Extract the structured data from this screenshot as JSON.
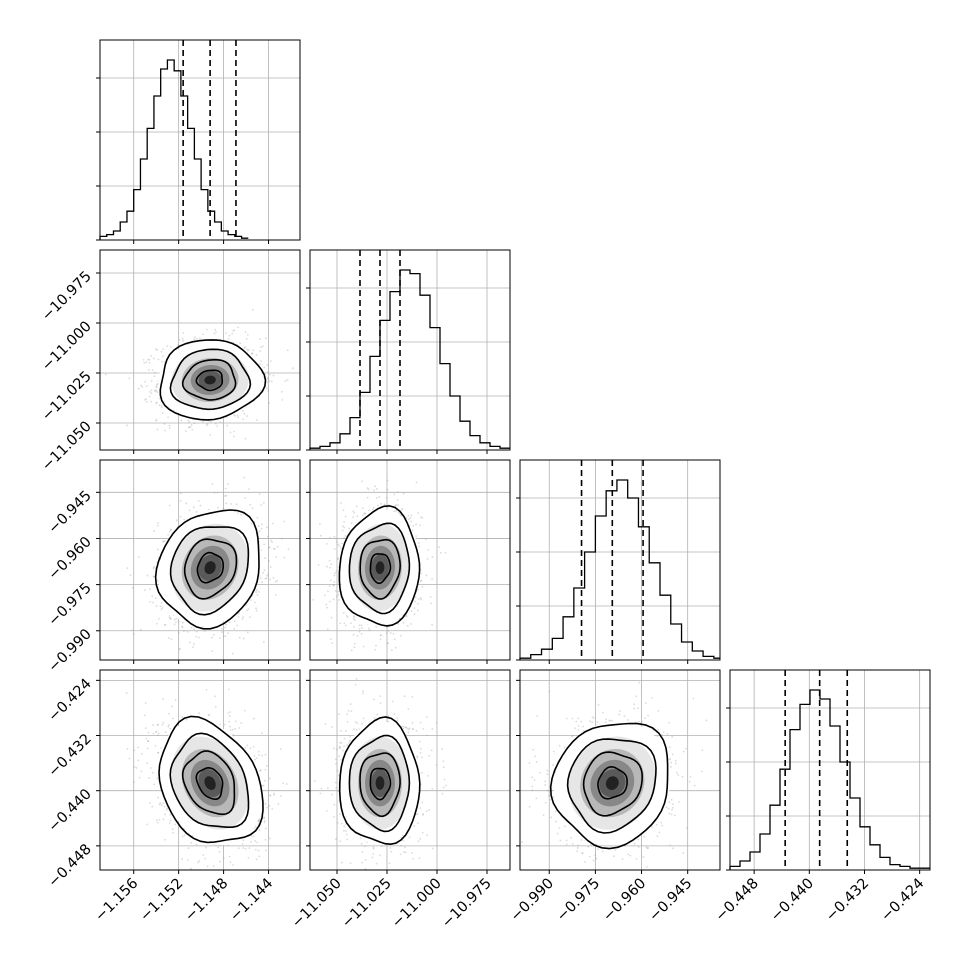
{
  "chart_data": {
    "type": "corner",
    "grid": true,
    "parameters": [
      {
        "ticks": [
          -1.156,
          -1.152,
          -1.148,
          -1.144
        ],
        "tick_labels": [
          "−1.156",
          "−1.152",
          "−1.148",
          "−1.144"
        ],
        "range": [
          -1.159,
          -1.1412
        ],
        "quantiles": [
          -1.1516,
          -1.1492,
          -1.1469
        ],
        "mean": -1.1492,
        "sd": 0.0023,
        "histogram": {
          "bin_edges_start": -1.159,
          "bin_width": 0.0006,
          "counts": [
            2,
            3,
            5,
            10,
            16,
            28,
            45,
            62,
            80,
            95,
            100,
            94,
            80,
            62,
            45,
            28,
            16,
            10,
            5,
            3,
            2,
            1
          ]
        }
      },
      {
        "ticks": [
          -11.05,
          -11.025,
          -11.0,
          -10.975
        ],
        "tick_labels": [
          "−11.050",
          "−11.025",
          "−11.000",
          "−10.975"
        ],
        "range": [
          -11.0635,
          -10.9635
        ],
        "quantiles": [
          -11.0385,
          -11.0285,
          -11.0185
        ],
        "mean": -11.0285,
        "sd": 0.01,
        "histogram": {
          "bin_edges_start": -11.0635,
          "bin_width": 0.005,
          "counts": [
            1,
            2,
            4,
            9,
            18,
            32,
            52,
            72,
            88,
            100,
            98,
            86,
            68,
            48,
            30,
            16,
            8,
            4,
            2,
            1
          ]
        }
      },
      {
        "ticks": [
          -0.99,
          -0.975,
          -0.96,
          -0.945
        ],
        "tick_labels": [
          "−0.990",
          "−0.975",
          "−0.960",
          "−0.945"
        ],
        "range": [
          -0.9995,
          -0.9345
        ],
        "quantiles": [
          -0.9795,
          -0.9695,
          -0.9595
        ],
        "mean": -0.9695,
        "sd": 0.0095,
        "histogram": {
          "bin_edges_start": -0.9995,
          "bin_width": 0.0035,
          "counts": [
            1,
            3,
            6,
            12,
            24,
            40,
            60,
            80,
            94,
            100,
            90,
            74,
            54,
            36,
            20,
            10,
            5,
            2,
            1
          ]
        }
      },
      {
        "ticks": [
          -0.448,
          -0.44,
          -0.432,
          -0.424
        ],
        "tick_labels": [
          "−0.448",
          "−0.440",
          "−0.432",
          "−0.424"
        ],
        "range": [
          -0.4515,
          -0.4225
        ],
        "quantiles": [
          -0.4435,
          -0.4385,
          -0.4345
        ],
        "mean": -0.4389,
        "sd": 0.0045,
        "histogram": {
          "bin_edges_start": -0.4515,
          "bin_width": 0.00145,
          "counts": [
            2,
            5,
            10,
            20,
            36,
            56,
            78,
            92,
            100,
            95,
            80,
            60,
            40,
            24,
            14,
            7,
            3,
            2,
            1,
            1
          ]
        }
      }
    ],
    "correlations": [
      {
        "row": 1,
        "col": 0,
        "r": 0.05
      },
      {
        "row": 2,
        "col": 0,
        "r": 0.15
      },
      {
        "row": 2,
        "col": 1,
        "r": 0.05
      },
      {
        "row": 3,
        "col": 0,
        "r": -0.25
      },
      {
        "row": 3,
        "col": 1,
        "r": 0.0
      },
      {
        "row": 3,
        "col": 2,
        "r": 0.1
      }
    ],
    "contour_levels_sigma": [
      0.5,
      1.0,
      1.5,
      2.0
    ],
    "scatter_color": "#999999",
    "line_color": "#000000",
    "grid_color": "#b0b0b0"
  }
}
